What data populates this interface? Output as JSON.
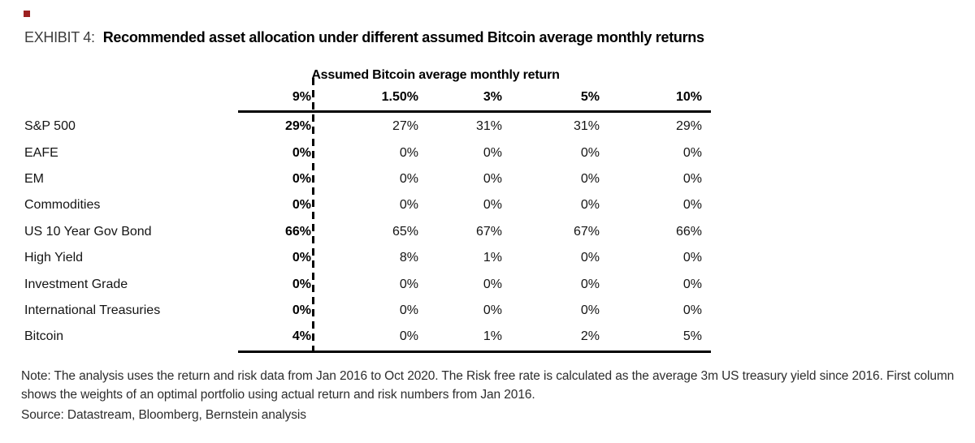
{
  "page": {
    "exhibit_label": "EXHIBIT 4:",
    "exhibit_title": "Recommended asset allocation under different assumed Bitcoin average monthly returns",
    "note": "Note: The analysis uses the return and risk data from Jan 2016 to Oct 2020. The Risk free rate is calculated as the average 3m US treasury yield since 2016. First column shows the weights of an optimal portfolio using actual return and risk numbers from Jan 2016.",
    "source": "Source: Datastream, Bloomberg, Bernstein analysis",
    "accent_color": "#9c2121"
  },
  "chart_data": {
    "type": "table",
    "title": "Assumed Bitcoin average monthly return",
    "columns": [
      "9%",
      "1.50%",
      "3%",
      "5%",
      "10%"
    ],
    "rows": [
      {
        "label": "S&P 500",
        "values": [
          "29%",
          "27%",
          "31%",
          "31%",
          "29%"
        ]
      },
      {
        "label": "EAFE",
        "values": [
          "0%",
          "0%",
          "0%",
          "0%",
          "0%"
        ]
      },
      {
        "label": "EM",
        "values": [
          "0%",
          "0%",
          "0%",
          "0%",
          "0%"
        ]
      },
      {
        "label": "Commodities",
        "values": [
          "0%",
          "0%",
          "0%",
          "0%",
          "0%"
        ]
      },
      {
        "label": "US 10 Year Gov Bond",
        "values": [
          "66%",
          "65%",
          "67%",
          "67%",
          "66%"
        ]
      },
      {
        "label": "High Yield",
        "values": [
          "0%",
          "8%",
          "1%",
          "0%",
          "0%"
        ]
      },
      {
        "label": "Investment Grade",
        "values": [
          "0%",
          "0%",
          "0%",
          "0%",
          "0%"
        ]
      },
      {
        "label": "International Treasuries",
        "values": [
          "0%",
          "0%",
          "0%",
          "0%",
          "0%"
        ]
      },
      {
        "label": "Bitcoin",
        "values": [
          "4%",
          "0%",
          "1%",
          "2%",
          "5%"
        ]
      }
    ]
  }
}
